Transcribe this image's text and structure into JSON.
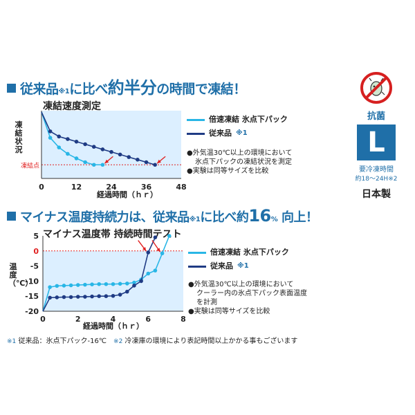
{
  "heading1": {
    "prefix": "従来品",
    "ref": "※1",
    "mid": "に比べ",
    "strong": "約半分",
    "suffix": "の時間で凍結！"
  },
  "heading2": {
    "prefix": "マイナス温度持続力は、従来品",
    "ref": "※1",
    "mid": "に比べ約",
    "num": "16",
    "pct": "%",
    "suffix": " 向上！"
  },
  "chart1_title": "凍結速度測定",
  "chart2_title": "マイナス温度帯 持続時間テスト",
  "side": {
    "kokin": "抗菌",
    "size": "L",
    "req1": "要冷凍時間",
    "req2": "約18〜24H",
    "req2_ref": "※2",
    "made": "日本製"
  },
  "notes1": {
    "n1": "●外気温30℃以上の環境において",
    "n1b": "氷点下パックの凍結状況を測定",
    "n2": "●実験は同等サイズを比較"
  },
  "notes2": {
    "n1": "●外気温30℃以上の環境において",
    "n1b": "クーラー内の氷点下パック表面温度",
    "n1c": "を計測",
    "n2": "●実験は同等サイズを比較"
  },
  "footnote": {
    "m1": "※1",
    "t1": "従来品：氷点下パック-16℃",
    "m2": "※2",
    "t2": "冷凍庫の環境により表記時間以上かかる事もございます"
  },
  "colors": {
    "accent": "#1f6fa8",
    "series_fast": "#29b6e6",
    "series_old": "#1f3b84",
    "plot_bg": "#dcefff",
    "marker_red": "#e02020"
  },
  "chart_data": [
    {
      "type": "line",
      "title": "凍結速度測定",
      "xlabel": "経過時間（ｈｒ）",
      "ylabel": "凍結状況",
      "xlim": [
        0,
        48
      ],
      "xticks": [
        0,
        12,
        24,
        36,
        48
      ],
      "reference_line_label": "凍結点",
      "grid": false,
      "legend": "right",
      "series": [
        {
          "name": "倍速凍結 氷点下パック",
          "color": "#29b6e6",
          "points": [
            [
              0,
              100
            ],
            [
              3,
              60
            ],
            [
              6,
              45
            ],
            [
              9,
              35
            ],
            [
              12,
              28
            ],
            [
              15,
              22
            ],
            [
              18,
              18
            ],
            [
              21,
              18
            ]
          ]
        },
        {
          "name": "従来品",
          "ref": "※1",
          "color": "#1f3b84",
          "points": [
            [
              0,
              100
            ],
            [
              3,
              70
            ],
            [
              6,
              62
            ],
            [
              9,
              58
            ],
            [
              12,
              54
            ],
            [
              15,
              50
            ],
            [
              18,
              46
            ],
            [
              21,
              42
            ],
            [
              24,
              38
            ],
            [
              27,
              34
            ],
            [
              30,
              30
            ],
            [
              33,
              26
            ],
            [
              36,
              22
            ],
            [
              39,
              18
            ]
          ]
        }
      ]
    },
    {
      "type": "line",
      "title": "マイナス温度帯 持続時間テスト",
      "xlabel": "経過時間（ｈｒ）",
      "ylabel": "温度（℃）",
      "xlim": [
        0,
        8
      ],
      "ylim": [
        -20,
        5
      ],
      "xticks": [
        0,
        2,
        4,
        6,
        8
      ],
      "yticks": [
        5,
        0,
        -5,
        -10,
        -15,
        -20
      ],
      "grid": false,
      "legend": "right",
      "series": [
        {
          "name": "倍速凍結 氷点下パック",
          "color": "#29b6e6",
          "points": [
            [
              0,
              -20
            ],
            [
              0.4,
              -12
            ],
            [
              0.8,
              -11.6
            ],
            [
              1.2,
              -11.5
            ],
            [
              1.6,
              -11.4
            ],
            [
              2.0,
              -11.3
            ],
            [
              2.4,
              -11.2
            ],
            [
              2.8,
              -11.1
            ],
            [
              3.2,
              -11
            ],
            [
              3.6,
              -11
            ],
            [
              4.0,
              -11
            ],
            [
              4.4,
              -10.9
            ],
            [
              4.8,
              -10.8
            ],
            [
              5.2,
              -10.5
            ],
            [
              5.6,
              -9.5
            ],
            [
              6.0,
              -7.5
            ],
            [
              6.4,
              -6.5
            ],
            [
              6.8,
              -0.8
            ],
            [
              7.2,
              5
            ]
          ]
        },
        {
          "name": "従来品",
          "ref": "※1",
          "color": "#1f3b84",
          "points": [
            [
              0,
              -20
            ],
            [
              0.4,
              -15.5
            ],
            [
              0.8,
              -15.4
            ],
            [
              1.2,
              -15.3
            ],
            [
              1.6,
              -15.3
            ],
            [
              2.0,
              -15.2
            ],
            [
              2.4,
              -15.2
            ],
            [
              2.8,
              -15.1
            ],
            [
              3.2,
              -15
            ],
            [
              3.6,
              -15
            ],
            [
              4.0,
              -14.9
            ],
            [
              4.4,
              -14.5
            ],
            [
              4.8,
              -13.5
            ],
            [
              5.2,
              -11.5
            ],
            [
              5.6,
              -10
            ],
            [
              6.0,
              -0.5
            ],
            [
              6.4,
              4.5
            ]
          ]
        }
      ]
    }
  ]
}
